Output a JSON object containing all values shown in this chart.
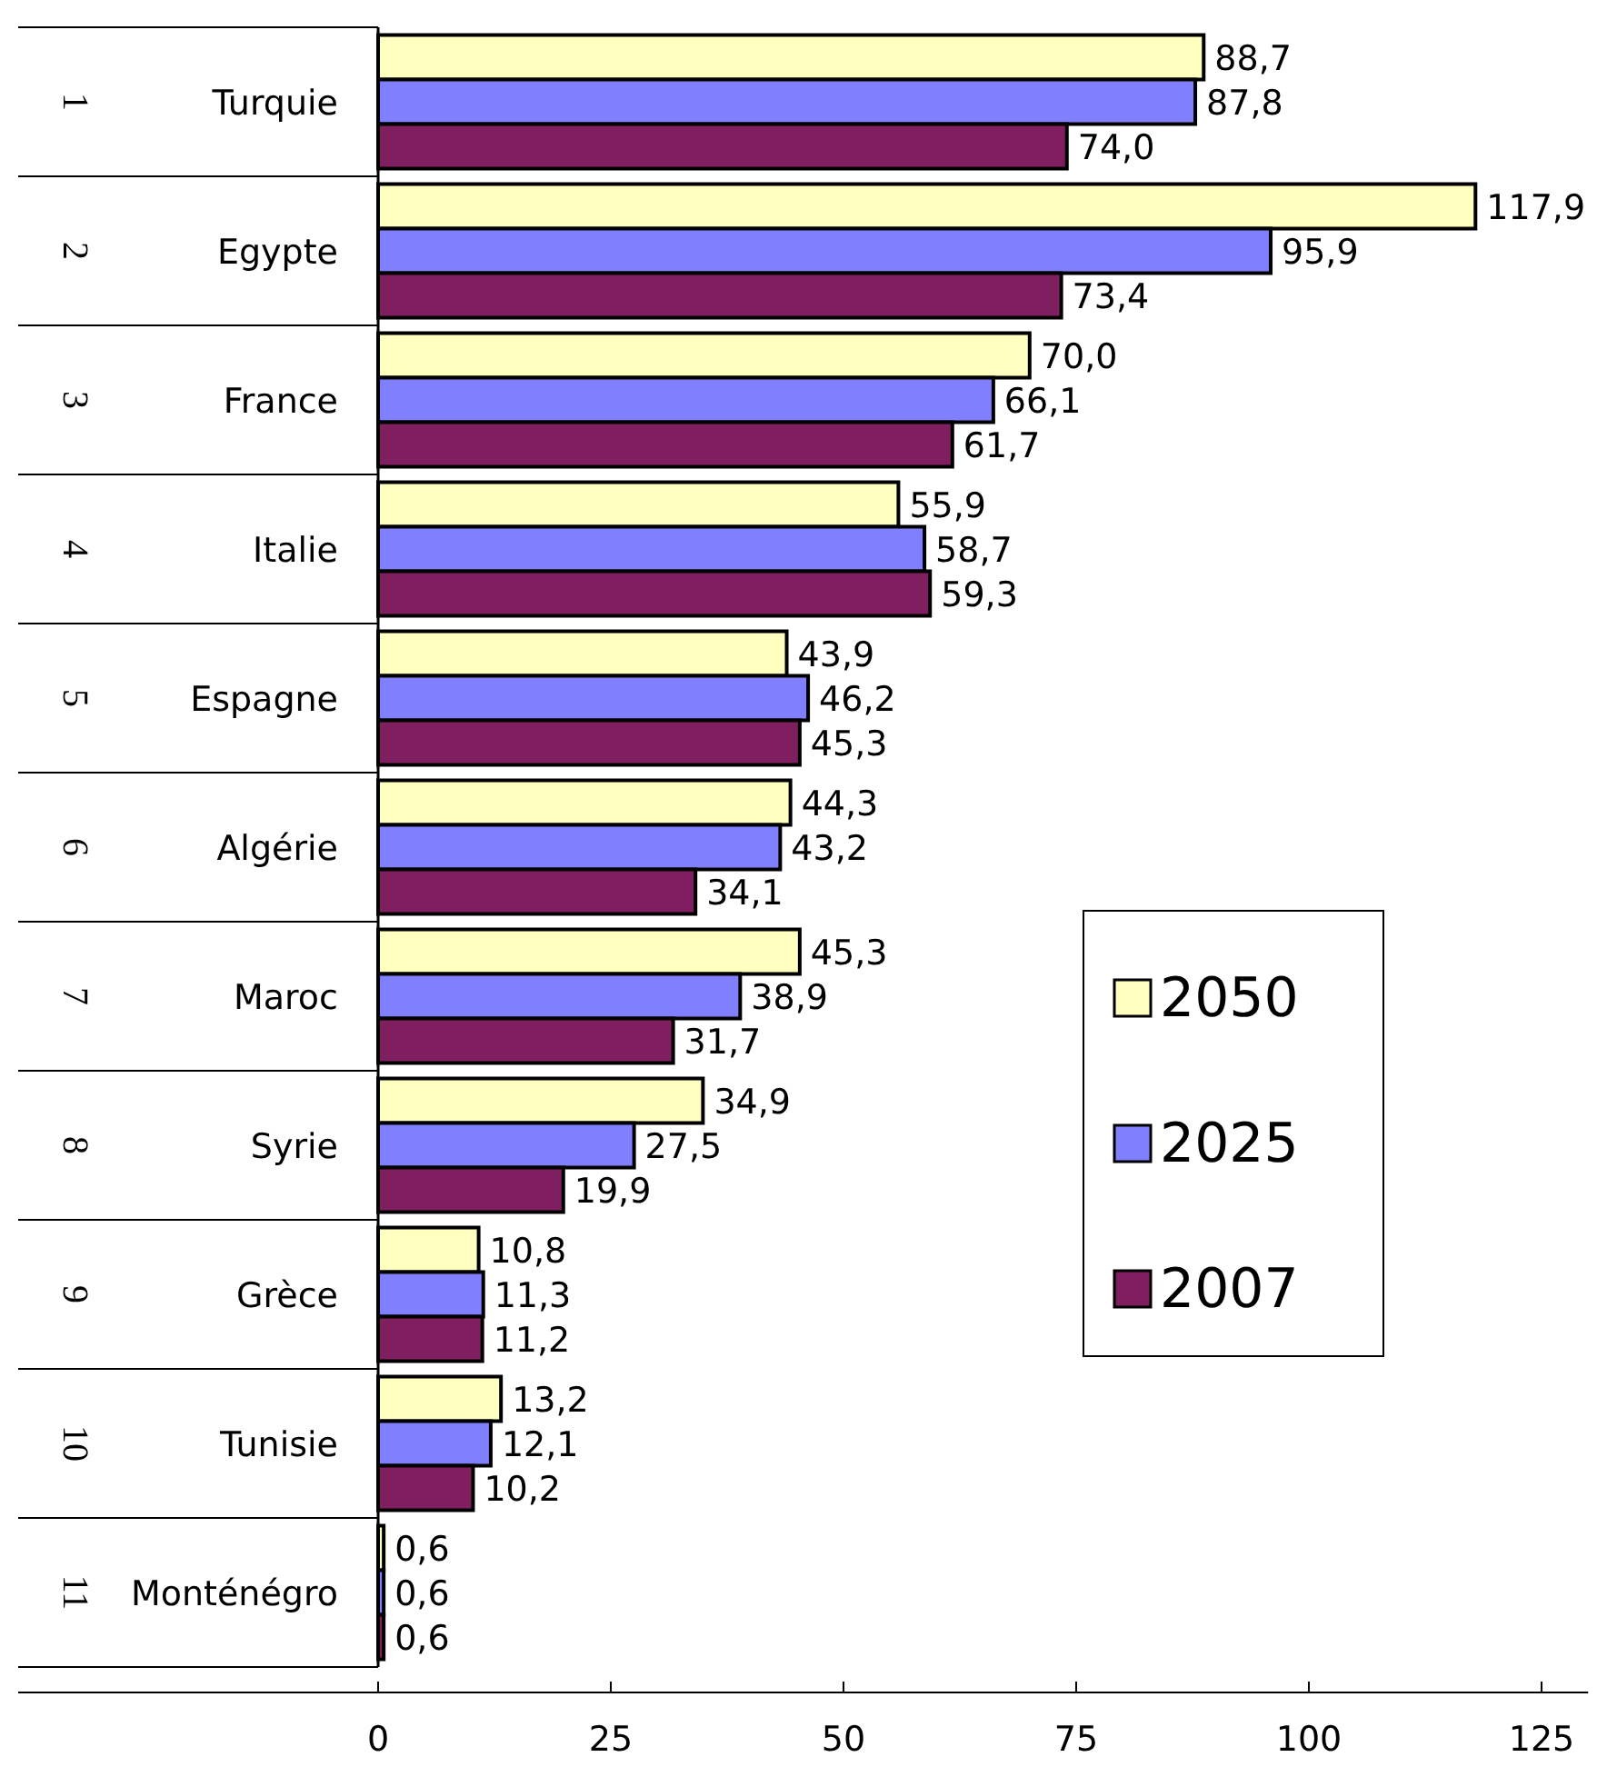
{
  "chart_data": {
    "type": "bar",
    "orientation": "horizontal",
    "categories": [
      "Turquie",
      "Egypte",
      "France",
      "Italie",
      "Espagne",
      "Algérie",
      "Maroc",
      "Syrie",
      "Grèce",
      "Tunisie",
      "Monténégro"
    ],
    "y2_categories": [
      "1",
      "2",
      "3",
      "4",
      "5",
      "6",
      "7",
      "8",
      "9",
      "10",
      "11"
    ],
    "series": [
      {
        "name": "2050",
        "color": "#ffffc0",
        "values": [
          88.7,
          117.9,
          70.0,
          55.9,
          43.9,
          44.3,
          45.3,
          34.9,
          10.8,
          13.2,
          0.6
        ],
        "value_labels": [
          "88,7",
          "117,9",
          "70,0",
          "55,9",
          "43,9",
          "44,3",
          "45,3",
          "34,9",
          "10,8",
          "13,2",
          "0,6"
        ]
      },
      {
        "name": "2025",
        "color": "#8080ff",
        "values": [
          87.8,
          95.9,
          66.1,
          58.7,
          46.2,
          43.2,
          38.9,
          27.5,
          11.3,
          12.1,
          0.6
        ],
        "value_labels": [
          "87,8",
          "95,9",
          "66,1",
          "58,7",
          "46,2",
          "43,2",
          "38,9",
          "27,5",
          "11,3",
          "12,1",
          "0,6"
        ]
      },
      {
        "name": "2007",
        "color": "#7f1f5f",
        "values": [
          74.0,
          73.4,
          61.7,
          59.3,
          45.3,
          34.1,
          31.7,
          19.9,
          11.2,
          10.2,
          0.6
        ],
        "value_labels": [
          "74,0",
          "73,4",
          "61,7",
          "59,3",
          "45,3",
          "34,1",
          "31,7",
          "19,9",
          "11,2",
          "10,2",
          "0,6"
        ]
      }
    ],
    "xlim": [
      0,
      130
    ],
    "xticks": [
      0,
      25,
      50,
      75,
      100,
      125
    ],
    "grid": false,
    "legend": "right"
  }
}
